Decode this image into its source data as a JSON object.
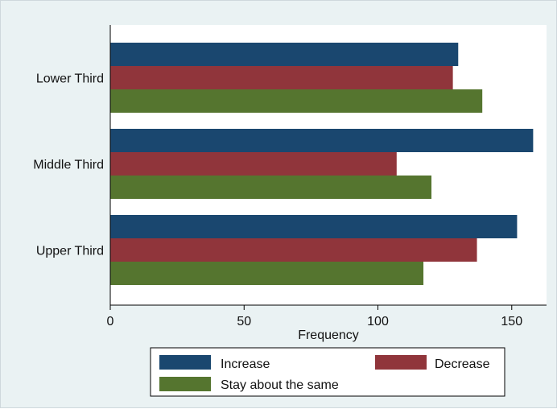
{
  "chart_data": {
    "type": "bar",
    "orientation": "horizontal",
    "categories": [
      "Lower Third",
      "Middle Third",
      "Upper Third"
    ],
    "series": [
      {
        "name": "Increase",
        "values": [
          130,
          158,
          152
        ],
        "color": "#1a476f"
      },
      {
        "name": "Decrease",
        "values": [
          128,
          107,
          137
        ],
        "color": "#90353b"
      },
      {
        "name": "Stay about the same",
        "values": [
          139,
          120,
          117
        ],
        "color": "#55752f"
      }
    ],
    "xlabel": "Frequency",
    "ylabel": "",
    "xlim": [
      0,
      163
    ],
    "xticks": [
      0,
      50,
      100,
      150
    ],
    "grid": false,
    "legend_position": "bottom"
  }
}
